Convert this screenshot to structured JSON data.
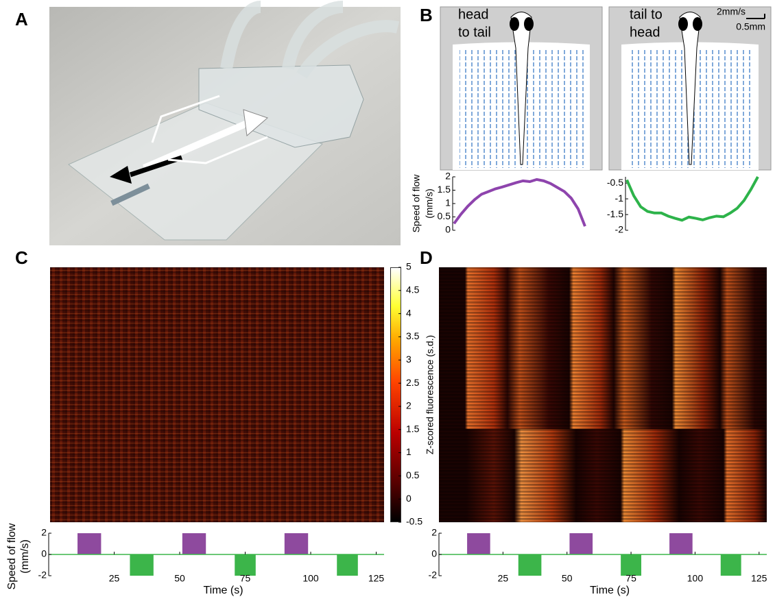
{
  "figure": {
    "panel_labels": [
      "A",
      "B",
      "C",
      "D"
    ],
    "flow_diagram": {
      "left_caption": [
        "head",
        "to tail"
      ],
      "right_caption": [
        "tail to",
        "head"
      ],
      "scale_speed": "2mm/s",
      "scale_length": "0.5mm"
    },
    "speed_plots": [
      {
        "type": "line",
        "ylabel": [
          "Speed of flow",
          "(mm/s)"
        ],
        "color": "#8e44ad",
        "ylim": [
          0,
          2
        ],
        "yticks": [
          0,
          0.5,
          1,
          1.5,
          2
        ],
        "values": [
          0.25,
          0.6,
          0.9,
          1.15,
          1.35,
          1.45,
          1.55,
          1.62,
          1.7,
          1.78,
          1.85,
          1.82,
          1.9,
          1.85,
          1.75,
          1.6,
          1.45,
          1.2,
          0.8,
          0.15
        ]
      },
      {
        "type": "line",
        "color": "#2db34a",
        "ylim": [
          -2,
          -0.3
        ],
        "yticks": [
          -2,
          -1.5,
          -1,
          -0.5
        ],
        "values": [
          -0.4,
          -0.9,
          -1.25,
          -1.4,
          -1.45,
          -1.45,
          -1.55,
          -1.62,
          -1.68,
          -1.58,
          -1.62,
          -1.67,
          -1.6,
          -1.55,
          -1.57,
          -1.45,
          -1.3,
          -1.05,
          -0.7,
          -0.3
        ]
      }
    ],
    "colorbar": {
      "label": "Z-scored fluorescence (s.d.)",
      "lim": [
        -0.5,
        5
      ],
      "ticks": [
        -0.5,
        0,
        0.5,
        1,
        1.5,
        2,
        2.5,
        3,
        3.5,
        4,
        4.5,
        5
      ]
    },
    "stimulus_plots": [
      {
        "type": "pulse",
        "ylabel": [
          "Speed of flow",
          "(mm/s)"
        ],
        "xlabel": "Time (s)",
        "xlim": [
          0,
          128
        ],
        "ylim": [
          -2,
          2
        ],
        "yticks": [
          -2,
          0,
          2
        ],
        "xticks": [
          25,
          50,
          75,
          100,
          125
        ],
        "pulses": [
          {
            "start": 11,
            "end": 20,
            "value": 2,
            "color": "#8e4a9e"
          },
          {
            "start": 31,
            "end": 40,
            "value": -2,
            "color": "#3cb54a"
          },
          {
            "start": 51,
            "end": 60,
            "value": 2,
            "color": "#8e4a9e"
          },
          {
            "start": 71,
            "end": 79,
            "value": -2,
            "color": "#3cb54a"
          },
          {
            "start": 90,
            "end": 99,
            "value": 2,
            "color": "#8e4a9e"
          },
          {
            "start": 110,
            "end": 118,
            "value": -2,
            "color": "#3cb54a"
          }
        ]
      },
      {
        "type": "pulse",
        "xlabel": "Time (s)",
        "xlim": [
          0,
          128
        ],
        "ylim": [
          -2,
          2
        ],
        "yticks": [
          -2,
          0,
          2
        ],
        "xticks": [
          25,
          50,
          75,
          100,
          125
        ],
        "pulses": [
          {
            "start": 11,
            "end": 20,
            "value": 2,
            "color": "#8e4a9e"
          },
          {
            "start": 31,
            "end": 40,
            "value": -2,
            "color": "#3cb54a"
          },
          {
            "start": 51,
            "end": 60,
            "value": 2,
            "color": "#8e4a9e"
          },
          {
            "start": 71,
            "end": 79,
            "value": -2,
            "color": "#3cb54a"
          },
          {
            "start": 90,
            "end": 99,
            "value": 2,
            "color": "#8e4a9e"
          },
          {
            "start": 110,
            "end": 118,
            "value": -2,
            "color": "#3cb54a"
          }
        ]
      }
    ]
  }
}
